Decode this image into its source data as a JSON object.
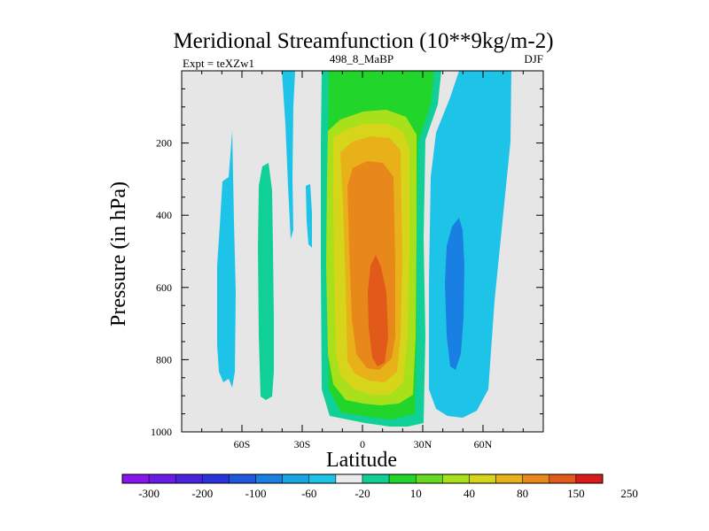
{
  "chart_data": {
    "type": "contour",
    "title": "Meridional Streamfunction (10**9kg/m-2)",
    "subtitle_left": "Expt = teXZw1",
    "subtitle_center": "498_8_MaBP",
    "subtitle_right": "DJF",
    "xlabel": "Latitude",
    "ylabel": "Pressure (in hPa)",
    "xlim": [
      -90,
      90
    ],
    "ylim": [
      1000,
      0
    ],
    "x_ticks": [
      {
        "value": -60,
        "label": "60S"
      },
      {
        "value": -30,
        "label": "30S"
      },
      {
        "value": 0,
        "label": "0"
      },
      {
        "value": 30,
        "label": "30N"
      },
      {
        "value": 60,
        "label": "60N"
      }
    ],
    "y_ticks": [
      {
        "value": 200,
        "label": "200"
      },
      {
        "value": 400,
        "label": "400"
      },
      {
        "value": 600,
        "label": "600"
      },
      {
        "value": 800,
        "label": "800"
      },
      {
        "value": 1000,
        "label": "1000"
      }
    ],
    "background_color": "#e6e6e6",
    "colorbar": {
      "colors": [
        "#8a14ee",
        "#6b1be8",
        "#4b22e0",
        "#2a34dc",
        "#1f58de",
        "#1a7fe2",
        "#18a5e6",
        "#1ec3e8",
        "#ebebeb",
        "#10d098",
        "#22d52a",
        "#64db20",
        "#a8e01c",
        "#d6d51a",
        "#e8b11a",
        "#e8871a",
        "#e25a1a",
        "#da1a1a"
      ],
      "labels": [
        "-300",
        "-200",
        "-100",
        "-60",
        "-20",
        "10",
        "40",
        "80",
        "150",
        "250"
      ]
    },
    "regions": [
      {
        "name": "neg-cell-60S",
        "level": -20,
        "color": "#1ec3e8"
      },
      {
        "name": "pos-cell-45S",
        "level": 10,
        "color": "#10d098"
      },
      {
        "name": "neg-streak-30S",
        "level": -20,
        "color": "#1ec3e8"
      },
      {
        "name": "neg-streak-25S",
        "level": -20,
        "color": "#1ec3e8"
      },
      {
        "name": "hadley-cell-10",
        "level": 10,
        "color": "#10d098"
      },
      {
        "name": "hadley-cell-40",
        "level": 40,
        "color": "#22d52a"
      },
      {
        "name": "hadley-cell-80",
        "level": 80,
        "color": "#a8e01c"
      },
      {
        "name": "hadley-cell-100",
        "level": 100,
        "color": "#d6d51a"
      },
      {
        "name": "hadley-cell-150",
        "level": 150,
        "color": "#e8b11a"
      },
      {
        "name": "hadley-cell-200",
        "level": 200,
        "color": "#e8871a"
      },
      {
        "name": "hadley-cell-250",
        "level": 250,
        "color": "#e25a1a"
      },
      {
        "name": "ferrel-cell-20",
        "level": -20,
        "color": "#1ec3e8"
      },
      {
        "name": "ferrel-cell-60",
        "level": -60,
        "color": "#1a7fe2"
      }
    ]
  }
}
